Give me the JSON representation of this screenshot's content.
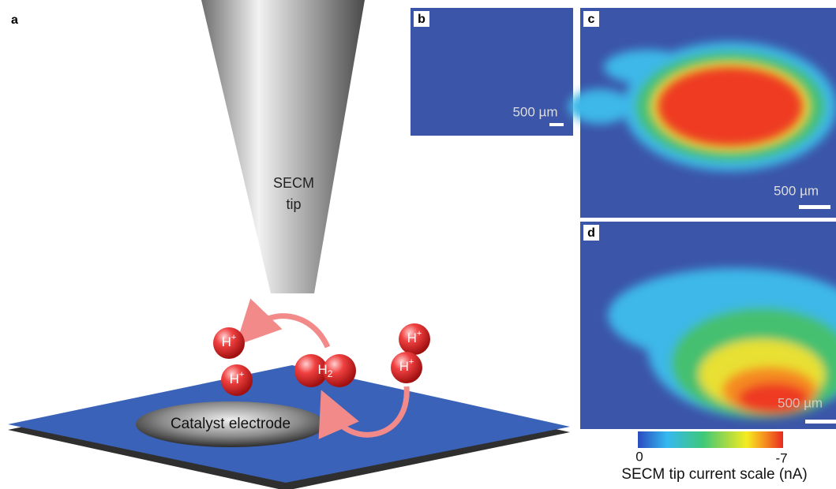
{
  "panels": {
    "a": {
      "label": "a",
      "tip_label": [
        "SECM",
        "tip"
      ],
      "species": [
        {
          "base": "H",
          "sup": "+"
        },
        {
          "base": "H",
          "sup": "+"
        },
        {
          "base": "H",
          "sub": "2"
        },
        {
          "base": "H",
          "sup": "+"
        },
        {
          "base": "H",
          "sup": "+"
        }
      ],
      "electrode_label": "Catalyst electrode"
    },
    "b": {
      "label": "b",
      "scale_bar": "500 µm"
    },
    "c": {
      "label": "c",
      "scale_bar": "500 µm"
    },
    "d": {
      "label": "d",
      "scale_bar": "500 µm"
    }
  },
  "colorbar": {
    "min": 0,
    "max": -7,
    "label": "SECM tip current scale (nA)"
  }
}
